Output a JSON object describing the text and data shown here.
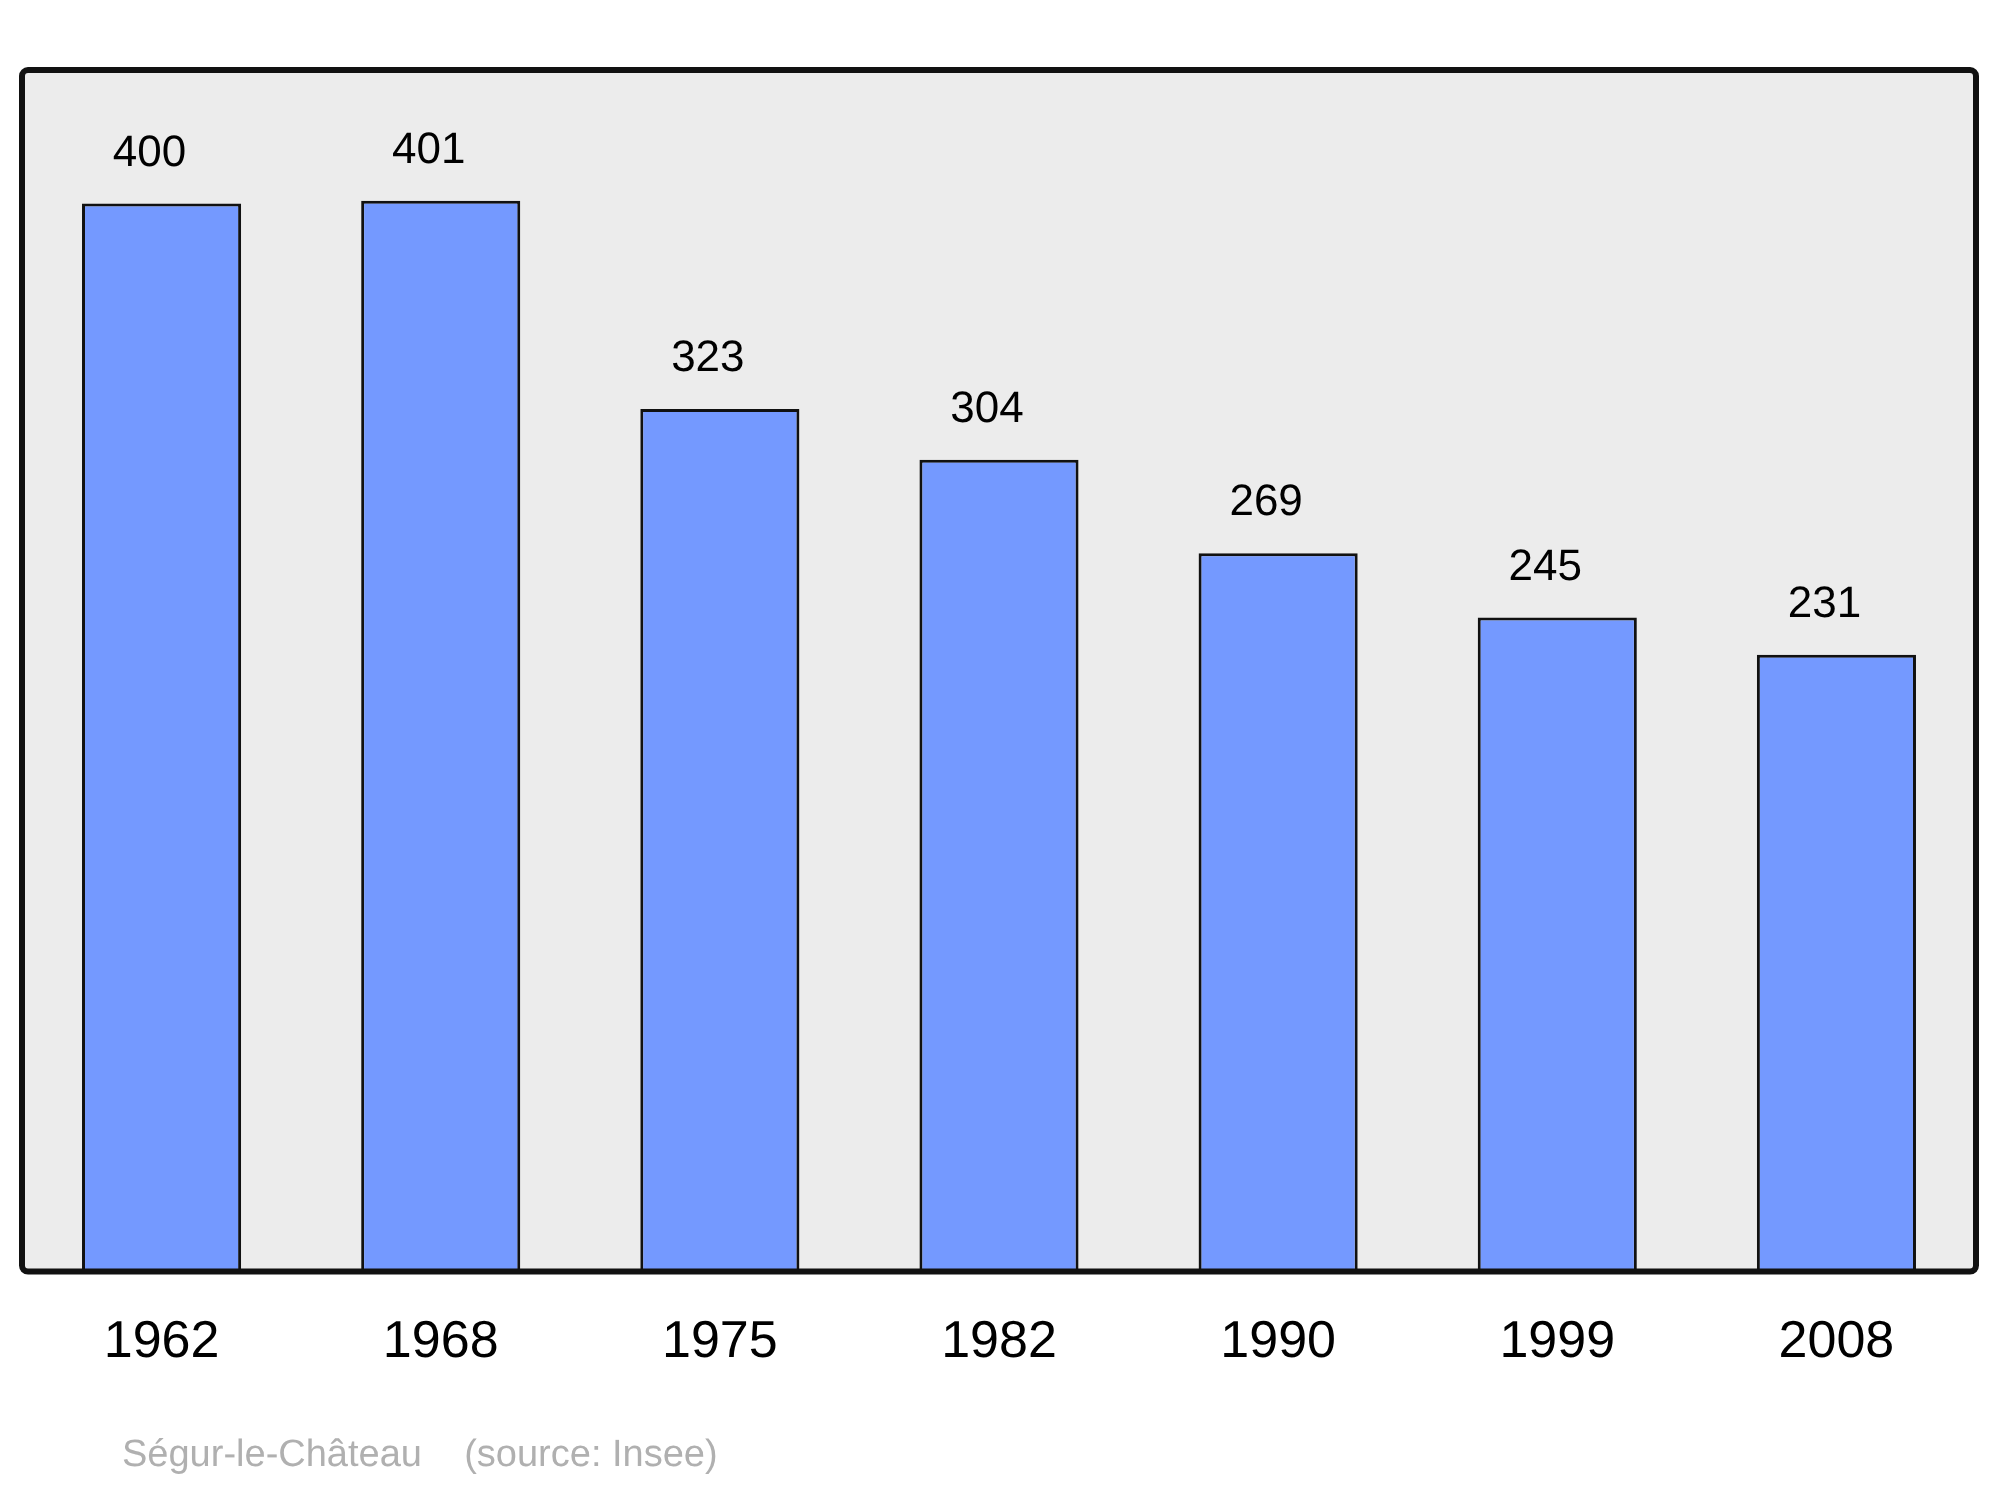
{
  "chart_data": {
    "type": "bar",
    "categories": [
      "1962",
      "1968",
      "1975",
      "1982",
      "1990",
      "1999",
      "2008"
    ],
    "values": [
      400,
      401,
      323,
      304,
      269,
      245,
      231
    ],
    "color": "#7499ff",
    "data_labels": true,
    "grid": false,
    "legend": false,
    "annotations": [
      "Ségur-le-Château    (source: Insee)"
    ]
  }
}
